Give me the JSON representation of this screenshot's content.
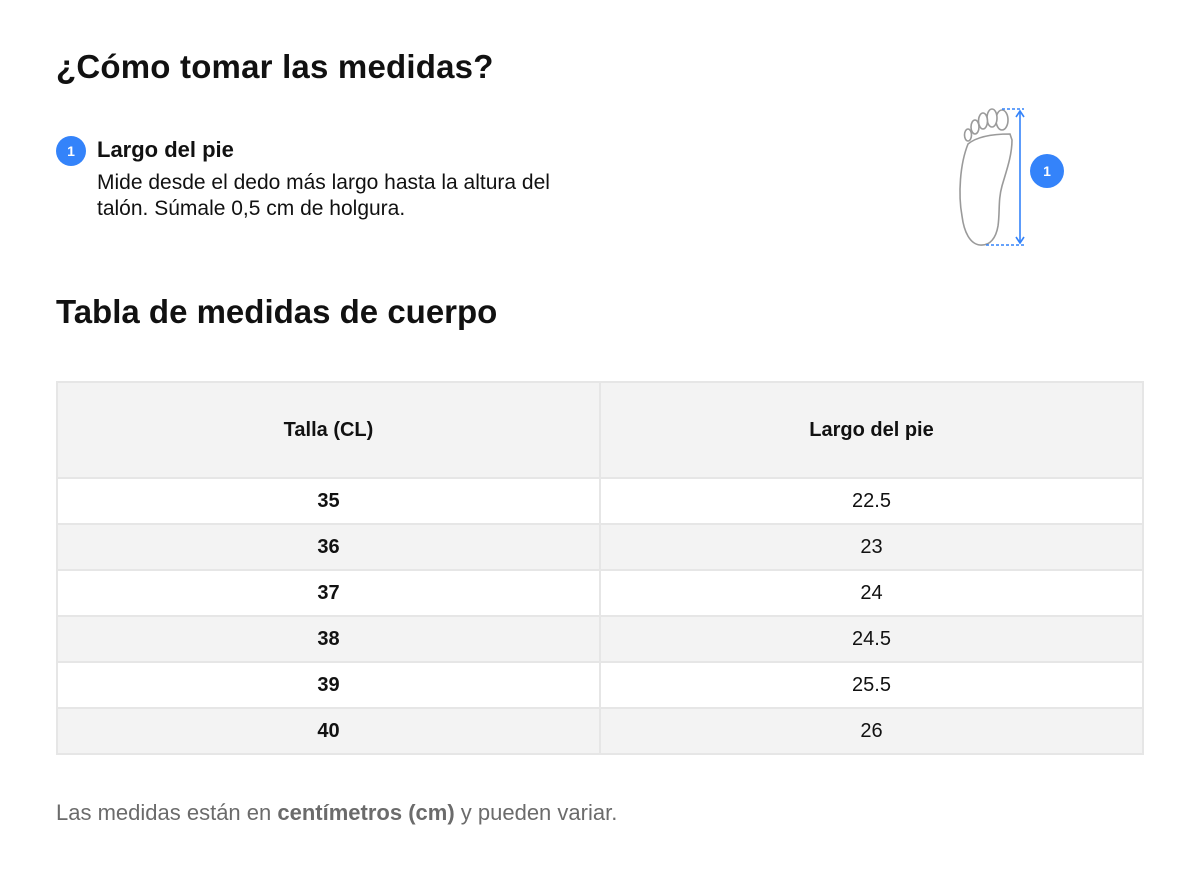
{
  "measure_section": {
    "title": "¿Cómo tomar las medidas?",
    "step": {
      "number": "1",
      "title": "Largo del pie",
      "description": "Mide desde el dedo más largo hasta la altura del talón. Súmale 0,5 cm de holgura."
    },
    "illustration": {
      "icon": "foot-length-icon",
      "marker": "1"
    }
  },
  "table_section": {
    "title": "Tabla de medidas de cuerpo",
    "columns": [
      "Talla (CL)",
      "Largo del pie"
    ],
    "rows": [
      {
        "size": "35",
        "foot_length": "22.5"
      },
      {
        "size": "36",
        "foot_length": "23"
      },
      {
        "size": "37",
        "foot_length": "24"
      },
      {
        "size": "38",
        "foot_length": "24.5"
      },
      {
        "size": "39",
        "foot_length": "25.5"
      },
      {
        "size": "40",
        "foot_length": "26"
      }
    ]
  },
  "footnote": {
    "prefix": "Las medidas están en ",
    "bold": "centímetros (cm)",
    "suffix": " y pueden variar."
  },
  "colors": {
    "accent": "#3483fa",
    "header_bg": "#f3f3f3",
    "border": "#e6e6e6",
    "note_text": "#6b6b6b"
  }
}
